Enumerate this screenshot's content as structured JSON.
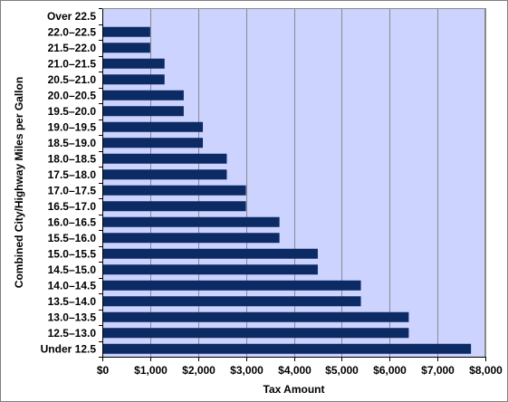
{
  "colors": {
    "plot_background": "#ccd3ff",
    "bar_fill": "#0c2a63",
    "gridline": "#8a8a8a",
    "axis": "#000000"
  },
  "chart_data": {
    "type": "bar",
    "orientation": "horizontal",
    "title": "",
    "xlabel": "Tax Amount",
    "ylabel": "Combined City/Highway Miles per Gallon",
    "categories": [
      "Over 22.5",
      "22.0–22.5",
      "21.5–22.0",
      "21.0–21.5",
      "20.5–21.0",
      "20.0–20.5",
      "19.5–20.0",
      "19.0–19.5",
      "18.5–19.0",
      "18.0–18.5",
      "17.5–18.0",
      "17.0–17.5",
      "16.5–17.0",
      "16.0–16.5",
      "15.5–16.0",
      "15.0–15.5",
      "14.5–15.0",
      "14.0–14.5",
      "13.5–14.0",
      "13.0–13.5",
      "12.5–13.0",
      "Under 12.5"
    ],
    "values": [
      0,
      1000,
      1000,
      1300,
      1300,
      1700,
      1700,
      2100,
      2100,
      2600,
      2600,
      3000,
      3000,
      3700,
      3700,
      4500,
      4500,
      5400,
      5400,
      6400,
      6400,
      7700
    ],
    "xlim": [
      0,
      8000
    ],
    "xticks": [
      0,
      1000,
      2000,
      3000,
      4000,
      5000,
      6000,
      7000,
      8000
    ],
    "xtick_labels": [
      "$0",
      "$1,000",
      "$2,000",
      "$3,000",
      "$4,000",
      "$5,000",
      "$6,000",
      "$7,000",
      "$8,000"
    ],
    "grid": "vertical",
    "legend": "none"
  }
}
